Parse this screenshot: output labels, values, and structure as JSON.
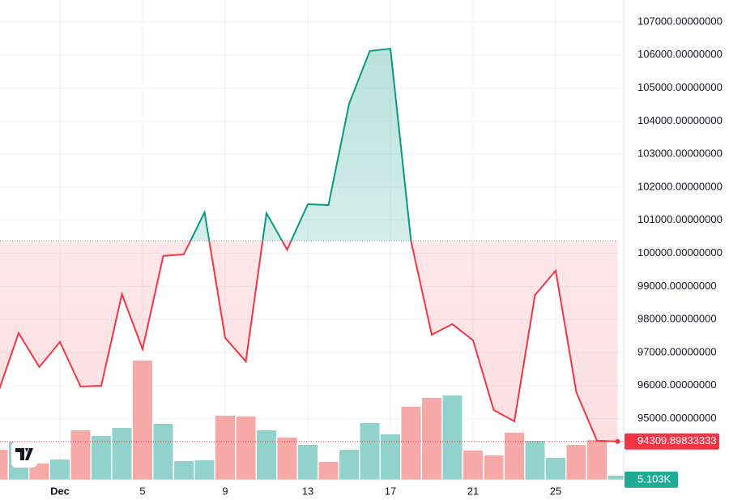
{
  "chart_data": {
    "type": "baseline",
    "categories": [
      null,
      null,
      null,
      "Dec",
      null,
      null,
      null,
      "5",
      null,
      null,
      null,
      "9",
      null,
      null,
      null,
      "13",
      null,
      null,
      null,
      "17",
      null,
      null,
      null,
      "21",
      null,
      null,
      null,
      "25",
      null,
      null,
      null
    ],
    "values": [
      95775,
      97590,
      96560,
      97320,
      95970,
      95995,
      98765,
      97100,
      99920,
      99970,
      101240,
      97440,
      96730,
      101215,
      100110,
      101485,
      101460,
      104525,
      106120,
      106190,
      100360,
      97540,
      97860,
      97370,
      95260,
      94920,
      98740,
      99475,
      95800,
      94330,
      94309.89833333
    ],
    "baseline": 100380,
    "up_color": "#089981",
    "down_color": "#f23645",
    "volume": [
      37000,
      47000,
      20000,
      25000,
      61000,
      54000,
      64000,
      147000,
      69000,
      23000,
      24000,
      79000,
      78000,
      61000,
      52000,
      43000,
      22000,
      37000,
      70000,
      56000,
      90000,
      101000,
      104000,
      36000,
      30000,
      58000,
      48000,
      27000,
      43000,
      49000,
      5103
    ],
    "volume_colors": [
      "#f7a9a7",
      "#92d2cc",
      "#f7a9a7",
      "#92d2cc",
      "#f7a9a7",
      "#92d2cc",
      "#92d2cc",
      "#f7a9a7",
      "#92d2cc",
      "#92d2cc",
      "#92d2cc",
      "#f7a9a7",
      "#f7a9a7",
      "#92d2cc",
      "#f7a9a7",
      "#92d2cc",
      "#f7a9a7",
      "#92d2cc",
      "#92d2cc",
      "#92d2cc",
      "#f7a9a7",
      "#f7a9a7",
      "#92d2cc",
      "#f7a9a7",
      "#f7a9a7",
      "#f7a9a7",
      "#92d2cc",
      "#92d2cc",
      "#f7a9a7",
      "#f7a9a7",
      "#92d2cc"
    ],
    "volume_ylim": [
      0,
      592000
    ],
    "last_value": 94309.89833333,
    "last_volume_label": "5.103K",
    "ylim": [
      93152,
      107662
    ],
    "yticks": [
      {
        "value": 95000,
        "label": "95000.00000000"
      },
      {
        "value": 96000,
        "label": "96000.00000000"
      },
      {
        "value": 97000,
        "label": "97000.00000000"
      },
      {
        "value": 98000,
        "label": "98000.00000000"
      },
      {
        "value": 99000,
        "label": "99000.00000000"
      },
      {
        "value": 100000,
        "label": "100000.00000000"
      },
      {
        "value": 101000,
        "label": "101000.00000000"
      },
      {
        "value": 102000,
        "label": "102000.00000000"
      },
      {
        "value": 103000,
        "label": "103000.00000000"
      },
      {
        "value": 104000,
        "label": "104000.00000000"
      },
      {
        "value": 105000,
        "label": "105000.00000000"
      },
      {
        "value": 106000,
        "label": "106000.00000000"
      },
      {
        "value": 107000,
        "label": "107000.00000000"
      }
    ],
    "grid": true
  }
}
